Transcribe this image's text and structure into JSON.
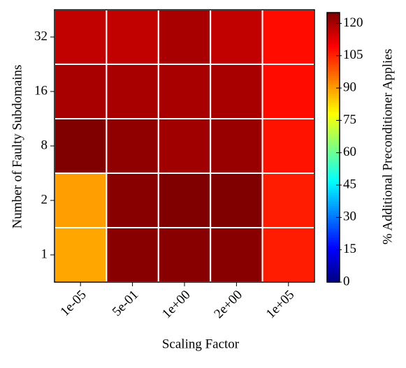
{
  "chart_data": {
    "type": "heatmap",
    "x_label": "Scaling Factor",
    "y_label": "Number of Faulty Subdomains",
    "colorbar_label": "% Additional Preconditioner Applies",
    "x_categories": [
      "1e-05",
      "5e-01",
      "1e+00",
      "2e+00",
      "1e+05"
    ],
    "y_categories": [
      "1",
      "2",
      "8",
      "16",
      "32"
    ],
    "z": [
      [
        89,
        124,
        124,
        124,
        106
      ],
      [
        90,
        124,
        125,
        125,
        106
      ],
      [
        125,
        123,
        121,
        122,
        107
      ],
      [
        120,
        120,
        120,
        120,
        108
      ],
      [
        117,
        117,
        120,
        117,
        108
      ]
    ],
    "colormap": "jet",
    "clim": [
      0,
      125
    ],
    "cticks": [
      0,
      15,
      30,
      45,
      60,
      75,
      90,
      105,
      120
    ]
  }
}
